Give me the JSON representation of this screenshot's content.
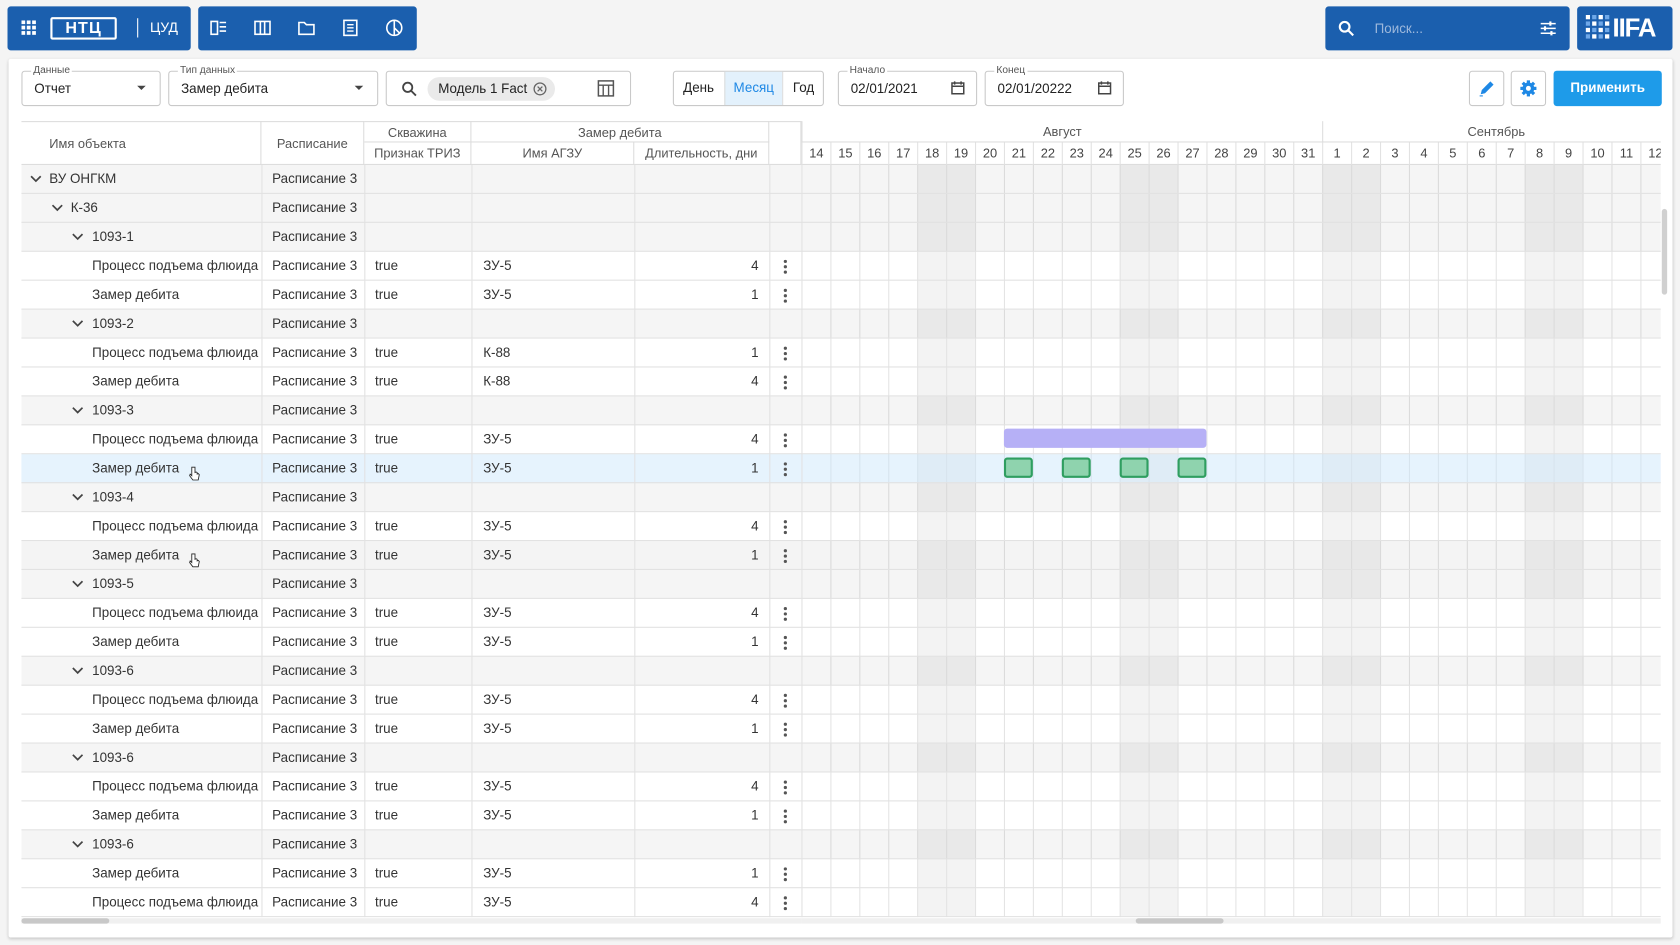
{
  "topbar": {
    "logo": "НТЦ",
    "app": "ЦУД",
    "search_placeholder": "Поиск...",
    "brand": "IIFA"
  },
  "filters": {
    "data": {
      "label": "Данные",
      "value": "Отчет"
    },
    "data_type": {
      "label": "Тип данных",
      "value": "Замер дебита"
    },
    "chip": "Модель 1 Fact",
    "views": [
      "День",
      "Месяц",
      "Год"
    ],
    "active_view": "Месяц",
    "start": {
      "label": "Начало",
      "value": "02/01/2021"
    },
    "end": {
      "label": "Конец",
      "value": "02/01/20222"
    },
    "apply": "Применить"
  },
  "table": {
    "headers": {
      "name": "Имя объекта",
      "schedule": "Расписание",
      "well": "Скважина",
      "measure": "Замер дебита",
      "triz": "Признак ТРИЗ",
      "agzu": "Имя АГЗУ",
      "duration": "Длительность, дни"
    },
    "tree": {
      "name": "ВУ ОНГКМ",
      "schedule": "Расписание 3",
      "children": [
        {
          "name": "К-36",
          "schedule": "Расписание 3",
          "children": [
            {
              "name": "1093-1",
              "schedule": "Расписание 3",
              "children": [
                {
                  "name": "Процесс подъема флюида",
                  "schedule": "Расписание 3",
                  "triz": "true",
                  "agzu": "ЗУ-5",
                  "duration": 4
                },
                {
                  "name": "Замер дебита",
                  "schedule": "Расписание 3",
                  "triz": "true",
                  "agzu": "ЗУ-5",
                  "duration": 1
                }
              ]
            },
            {
              "name": "1093-2",
              "schedule": "Расписание 3",
              "children": [
                {
                  "name": "Процесс подъема флюида",
                  "schedule": "Расписание 3",
                  "triz": "true",
                  "agzu": "К-88",
                  "duration": 1
                },
                {
                  "name": "Замер дебита",
                  "schedule": "Расписание 3",
                  "triz": "true",
                  "agzu": "К-88",
                  "duration": 4
                }
              ]
            },
            {
              "name": "1093-3",
              "schedule": "Расписание 3",
              "children": [
                {
                  "name": "Процесс подъема флюида",
                  "schedule": "Расписание 3",
                  "triz": "true",
                  "agzu": "ЗУ-5",
                  "duration": 4
                },
                {
                  "name": "Замер дебита",
                  "schedule": "Расписание 3",
                  "triz": "true",
                  "agzu": "ЗУ-5",
                  "duration": 1
                }
              ]
            },
            {
              "name": "1093-4",
              "schedule": "Расписание 3",
              "children": [
                {
                  "name": "Процесс подъема флюида",
                  "schedule": "Расписание 3",
                  "triz": "true",
                  "agzu": "ЗУ-5",
                  "duration": 4
                },
                {
                  "name": "Замер дебита",
                  "schedule": "Расписание 3",
                  "triz": "true",
                  "agzu": "ЗУ-5",
                  "duration": 1
                }
              ]
            },
            {
              "name": "1093-5",
              "schedule": "Расписание 3",
              "children": [
                {
                  "name": "Процесс подъема флюида",
                  "schedule": "Расписание 3",
                  "triz": "true",
                  "agzu": "ЗУ-5",
                  "duration": 4
                },
                {
                  "name": "Замер дебита",
                  "schedule": "Расписание 3",
                  "triz": "true",
                  "agzu": "ЗУ-5",
                  "duration": 1
                }
              ]
            },
            {
              "name": "1093-6",
              "schedule": "Расписание 3",
              "children": [
                {
                  "name": "Процесс подъема флюида",
                  "schedule": "Расписание 3",
                  "triz": "true",
                  "agzu": "ЗУ-5",
                  "duration": 4
                },
                {
                  "name": "Замер дебита",
                  "schedule": "Расписание 3",
                  "triz": "true",
                  "agzu": "ЗУ-5",
                  "duration": 1
                }
              ]
            },
            {
              "name": "1093-6",
              "schedule": "Расписание 3",
              "children": [
                {
                  "name": "Процесс подъема флюида",
                  "schedule": "Расписание 3",
                  "triz": "true",
                  "agzu": "ЗУ-5",
                  "duration": 4
                },
                {
                  "name": "Замер дебита",
                  "schedule": "Расписание 3",
                  "triz": "true",
                  "agzu": "ЗУ-5",
                  "duration": 1
                }
              ]
            },
            {
              "name": "1093-6",
              "schedule": "Расписание 3",
              "children": [
                {
                  "name": "Замер дебита",
                  "schedule": "Расписание 3",
                  "triz": "true",
                  "agzu": "ЗУ-5",
                  "duration": 1
                },
                {
                  "name": "Процесс подъема флюида",
                  "schedule": "Расписание 3",
                  "triz": "true",
                  "agzu": "ЗУ-5",
                  "duration": 4
                }
              ]
            }
          ]
        }
      ]
    }
  },
  "timeline": {
    "months": [
      {
        "name": "Август",
        "days": [
          14,
          15,
          16,
          17,
          18,
          19,
          20,
          21,
          22,
          23,
          24,
          25,
          26,
          27,
          28,
          29,
          30,
          31
        ]
      },
      {
        "name": "Сентябрь",
        "days": [
          1,
          2,
          3,
          4,
          5,
          6,
          7,
          8,
          9,
          10,
          11,
          12
        ]
      }
    ]
  }
}
